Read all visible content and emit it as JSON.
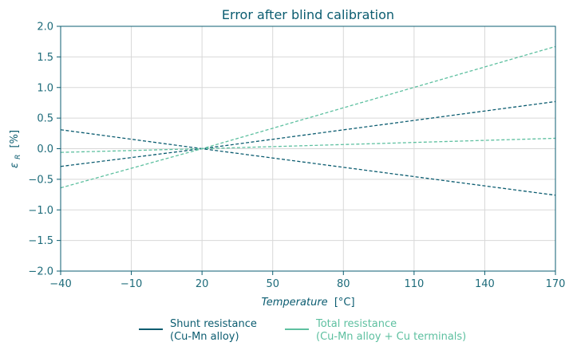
{
  "chart_data": {
    "type": "line",
    "title": "Error after blind calibration",
    "xlabel_italic": "Temperature",
    "xlabel_unit": "[°C]",
    "ylabel_symbol": "ε",
    "ylabel_sub": "R",
    "ylabel_unit": "[%]",
    "xlim": [
      -40,
      170
    ],
    "ylim": [
      -2.0,
      2.0
    ],
    "xticks": [
      -40,
      -10,
      20,
      50,
      80,
      110,
      140,
      170
    ],
    "xtick_labels": [
      "−40",
      "−10",
      "20",
      "50",
      "80",
      "110",
      "140",
      "170"
    ],
    "yticks": [
      -2.0,
      -1.5,
      -1.0,
      -0.5,
      0.0,
      0.5,
      1.0,
      1.5,
      2.0
    ],
    "ytick_labels": [
      "−2.0",
      "−1.5",
      "−1.0",
      "−0.5",
      "0.0",
      "0.5",
      "1.0",
      "1.5",
      "2.0"
    ],
    "grid": true,
    "legend_position": "bottom",
    "colors": {
      "shunt": "#0b5c70",
      "total": "#5ec0a0",
      "axis": "#0b5c70",
      "grid": "#d8d8d8"
    },
    "series": [
      {
        "group": "shunt",
        "x": [
          -40,
          20,
          170
        ],
        "y": [
          0.31,
          0.0,
          -0.76
        ]
      },
      {
        "group": "shunt",
        "x": [
          -40,
          20,
          170
        ],
        "y": [
          -0.29,
          0.0,
          0.77
        ]
      },
      {
        "group": "total",
        "x": [
          -40,
          20,
          170
        ],
        "y": [
          -0.06,
          0.0,
          0.17
        ]
      },
      {
        "group": "total",
        "x": [
          -40,
          20,
          170
        ],
        "y": [
          -0.64,
          0.0,
          1.67
        ]
      }
    ],
    "legend": [
      {
        "group": "shunt",
        "line1": "Shunt resistance",
        "line2": "(Cu-Mn alloy)"
      },
      {
        "group": "total",
        "line1": "Total resistance",
        "line2": "(Cu-Mn alloy + Cu terminals)"
      }
    ]
  }
}
